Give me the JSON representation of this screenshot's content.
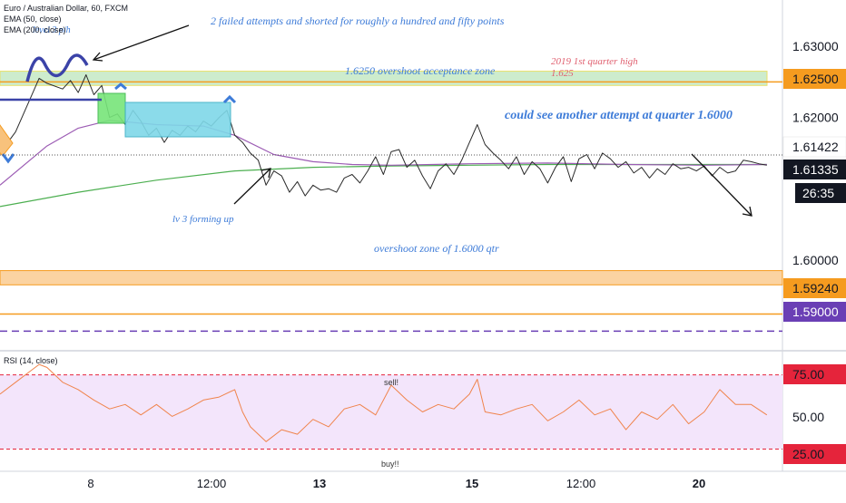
{
  "header": {
    "symbol": "Euro / Australian Dollar, 60, FXCM",
    "ema1": "EMA (50, close)",
    "ema2": "EMA (200, close)"
  },
  "rsi_header": "RSI (14, close)",
  "colors": {
    "price": "#2a2a2a",
    "ema50": "#9c5cb4",
    "ema200": "#4caf50",
    "rsi": "#f0844c",
    "rsi_band": "#f3e5fb",
    "orange": "#f59b1f",
    "annotation": "#3d7bd8",
    "red_text": "#e06070",
    "purple": "#6a3fb5",
    "dark": "#131722"
  },
  "annotations": {
    "top_note": "2 failed attempts and shorted for roughly a hundred and fifty points",
    "level3": "level 3 p/h",
    "zone_upper": "1.6250 overshoot acceptance zone",
    "q1_high_line1": "2019  1st quarter high",
    "q1_high_line2": "1.625",
    "attempt_note": "could see another attempt at quarter 1.6000",
    "lv3": "lv 3 forming up",
    "zone_lower": "overshoot zone of 1.6000 qtr",
    "sell": "sell!",
    "buy": "buy!!"
  },
  "price_labels": {
    "l1": "1.62500",
    "l2": "1.61422",
    "l3": "1.61335",
    "countdown": "26:35",
    "l4": "1.59240",
    "l5": "1.59000"
  },
  "rsi_labels": {
    "upper": "75.00",
    "lower": "25.00",
    "mid": "50.00"
  },
  "chart_data": [
    {
      "type": "line",
      "title": "Euro / Australian Dollar, 60, FXCM",
      "ylim": [
        1.5875,
        1.6365
      ],
      "y_ticks": [
        "1.63000",
        "1.62000",
        "1.60000"
      ],
      "x_ticks": [
        "8",
        "12:00",
        "13",
        "15",
        "12:00",
        "20"
      ],
      "xlim": [
        0,
        100
      ],
      "series": [
        {
          "name": "EURAUD",
          "x": [
            0,
            2,
            4,
            5,
            6,
            8,
            9,
            10,
            11,
            12,
            13,
            14,
            15,
            16,
            17,
            18,
            19,
            20,
            21,
            22,
            23,
            24,
            25,
            26,
            27,
            28,
            29,
            30,
            31,
            32,
            33,
            34,
            35,
            36,
            37,
            38,
            39,
            40,
            41,
            42,
            43,
            44,
            45,
            46,
            47,
            48,
            49,
            50,
            51,
            52,
            53,
            54,
            55,
            56,
            57,
            58,
            59,
            60,
            61,
            62,
            63,
            64,
            65,
            66,
            67,
            68,
            69,
            70,
            71,
            72,
            73,
            74,
            75,
            76,
            77,
            78,
            79,
            80,
            81,
            82,
            83,
            84,
            85,
            86,
            87,
            88,
            89,
            90,
            91,
            92,
            93,
            94,
            95,
            96,
            97,
            98
          ],
          "values": [
            1.615,
            1.618,
            1.623,
            1.6255,
            1.6248,
            1.624,
            1.6252,
            1.6235,
            1.626,
            1.6232,
            1.6245,
            1.62,
            1.6205,
            1.619,
            1.621,
            1.6195,
            1.6175,
            1.6185,
            1.6165,
            1.6182,
            1.6175,
            1.6188,
            1.618,
            1.6195,
            1.6188,
            1.62,
            1.621,
            1.6175,
            1.6165,
            1.615,
            1.614,
            1.6105,
            1.6125,
            1.6118,
            1.6095,
            1.611,
            1.609,
            1.6105,
            1.6098,
            1.61,
            1.6095,
            1.6115,
            1.612,
            1.6108,
            1.6125,
            1.6145,
            1.612,
            1.6152,
            1.6155,
            1.613,
            1.614,
            1.6118,
            1.61,
            1.6125,
            1.6135,
            1.612,
            1.614,
            1.6165,
            1.619,
            1.6162,
            1.615,
            1.614,
            1.6128,
            1.6145,
            1.612,
            1.6138,
            1.6128,
            1.6108,
            1.613,
            1.6145,
            1.611,
            1.6142,
            1.6148,
            1.6128,
            1.615,
            1.6142,
            1.613,
            1.6138,
            1.6122,
            1.613,
            1.6115,
            1.6128,
            1.612,
            1.6135,
            1.6128,
            1.613,
            1.6125,
            1.6132,
            1.6118,
            1.613,
            1.6122,
            1.6125,
            1.614,
            1.6138,
            1.6135,
            1.6133
          ]
        },
        {
          "name": "EMA (50, close)",
          "x": [
            0,
            6,
            10,
            14,
            20,
            26,
            30,
            35,
            40,
            45,
            50,
            60,
            70,
            80,
            90,
            98
          ],
          "values": [
            1.6105,
            1.616,
            1.6185,
            1.6196,
            1.619,
            1.6188,
            1.6175,
            1.6148,
            1.6138,
            1.6134,
            1.6133,
            1.6135,
            1.6136,
            1.6134,
            1.6133,
            1.6134
          ]
        },
        {
          "name": "EMA (200, close)",
          "x": [
            0,
            10,
            20,
            30,
            40,
            50,
            60,
            70,
            80,
            90,
            98
          ],
          "values": [
            1.6075,
            1.6095,
            1.6112,
            1.6125,
            1.613,
            1.6132,
            1.6133,
            1.6134,
            1.6134,
            1.6134,
            1.6134
          ]
        }
      ],
      "horizontal_levels": [
        1.625,
        1.5924,
        1.59
      ],
      "zones": [
        [
          1.6245,
          1.6265
        ],
        [
          1.5965,
          1.5985
        ]
      ]
    },
    {
      "type": "line",
      "title": "RSI (14, close)",
      "ylim": [
        10,
        90
      ],
      "y_ticks": [
        "75.00",
        "50.00",
        "25.00"
      ],
      "xlim": [
        0,
        100
      ],
      "series": [
        {
          "name": "RSI (14, close)",
          "x": [
            0,
            2,
            4,
            5,
            6,
            8,
            10,
            12,
            14,
            16,
            18,
            20,
            22,
            24,
            26,
            28,
            30,
            31,
            32,
            34,
            36,
            38,
            40,
            42,
            44,
            46,
            48,
            50,
            52,
            54,
            56,
            58,
            60,
            61,
            62,
            64,
            66,
            68,
            70,
            72,
            74,
            76,
            78,
            80,
            82,
            84,
            86,
            88,
            90,
            92,
            94,
            96,
            98
          ],
          "values": [
            62,
            70,
            78,
            82,
            80,
            70,
            65,
            58,
            52,
            55,
            48,
            55,
            47,
            52,
            58,
            60,
            65,
            50,
            40,
            30,
            38,
            35,
            45,
            40,
            52,
            55,
            48,
            68,
            58,
            50,
            55,
            52,
            62,
            72,
            50,
            48,
            52,
            55,
            44,
            50,
            58,
            48,
            52,
            38,
            50,
            45,
            55,
            42,
            50,
            65,
            55,
            55,
            48
          ]
        }
      ],
      "levels": [
        75,
        50,
        25
      ]
    }
  ]
}
